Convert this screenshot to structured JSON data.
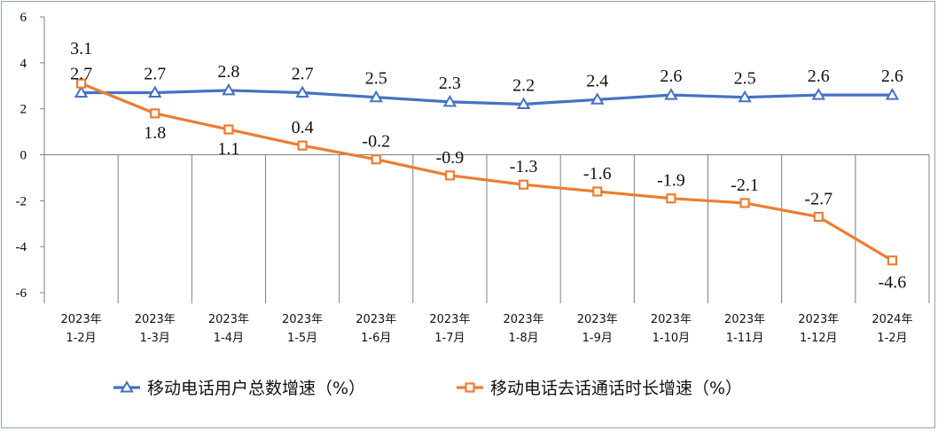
{
  "chart_data": {
    "type": "line",
    "title": "",
    "xlabel": "",
    "ylabel": "",
    "ylim": [
      -6,
      6
    ],
    "yticks": [
      6,
      4,
      2,
      0,
      -2,
      -4,
      -6
    ],
    "categories": [
      {
        "year": "2023年",
        "period": "1-2月"
      },
      {
        "year": "2023年",
        "period": "1-3月"
      },
      {
        "year": "2023年",
        "period": "1-4月"
      },
      {
        "year": "2023年",
        "period": "1-5月"
      },
      {
        "year": "2023年",
        "period": "1-6月"
      },
      {
        "year": "2023年",
        "period": "1-7月"
      },
      {
        "year": "2023年",
        "period": "1-8月"
      },
      {
        "year": "2023年",
        "period": "1-9月"
      },
      {
        "year": "2023年",
        "period": "1-10月"
      },
      {
        "year": "2023年",
        "period": "1-11月"
      },
      {
        "year": "2023年",
        "period": "1-12月"
      },
      {
        "year": "2024年",
        "period": "1-2月"
      }
    ],
    "series": [
      {
        "name": "移动电话用户总数增速（%）",
        "color": "#4472c4",
        "marker": "triangle",
        "values": [
          2.7,
          2.7,
          2.8,
          2.7,
          2.5,
          2.3,
          2.2,
          2.4,
          2.6,
          2.5,
          2.6,
          2.6
        ],
        "labels": [
          "2.7",
          "2.7",
          "2.8",
          "2.7",
          "2.5",
          "2.3",
          "2.2",
          "2.4",
          "2.6",
          "2.5",
          "2.6",
          "2.6"
        ]
      },
      {
        "name": "移动电话去话通话时长增速（%）",
        "color": "#ed7d31",
        "marker": "square",
        "values": [
          3.1,
          1.8,
          1.1,
          0.4,
          -0.2,
          -0.9,
          -1.3,
          -1.6,
          -1.9,
          -2.1,
          -2.7,
          -4.6
        ],
        "labels": [
          "3.1",
          "1.8",
          "1.1",
          "0.4",
          "-0.2",
          "-0.9",
          "-1.3",
          "-1.6",
          "-1.9",
          "-2.1",
          "-2.7",
          "-4.6"
        ]
      }
    ],
    "legend": "bottom"
  }
}
